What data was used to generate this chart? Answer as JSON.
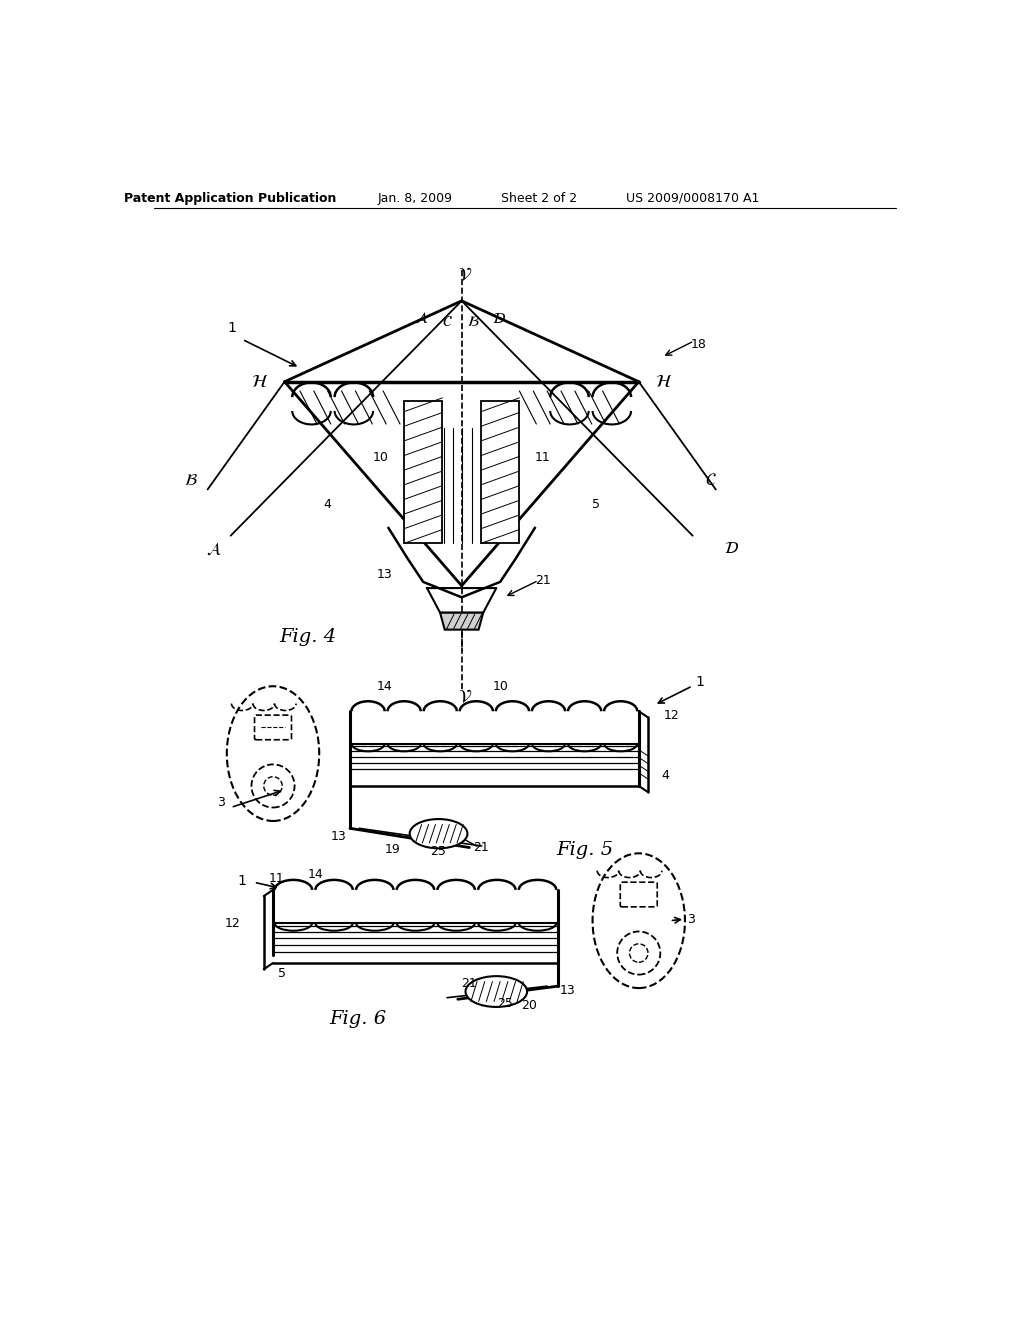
{
  "bg_color": "#ffffff",
  "header_text": "Patent Application Publication",
  "header_date": "Jan. 8, 2009",
  "header_sheet": "Sheet 2 of 2",
  "header_patent": "US 2009/0008170 A1",
  "fig4_caption": "Fig. 4",
  "fig5_caption": "Fig. 5",
  "fig6_caption": "Fig. 6",
  "line_color": "#000000"
}
